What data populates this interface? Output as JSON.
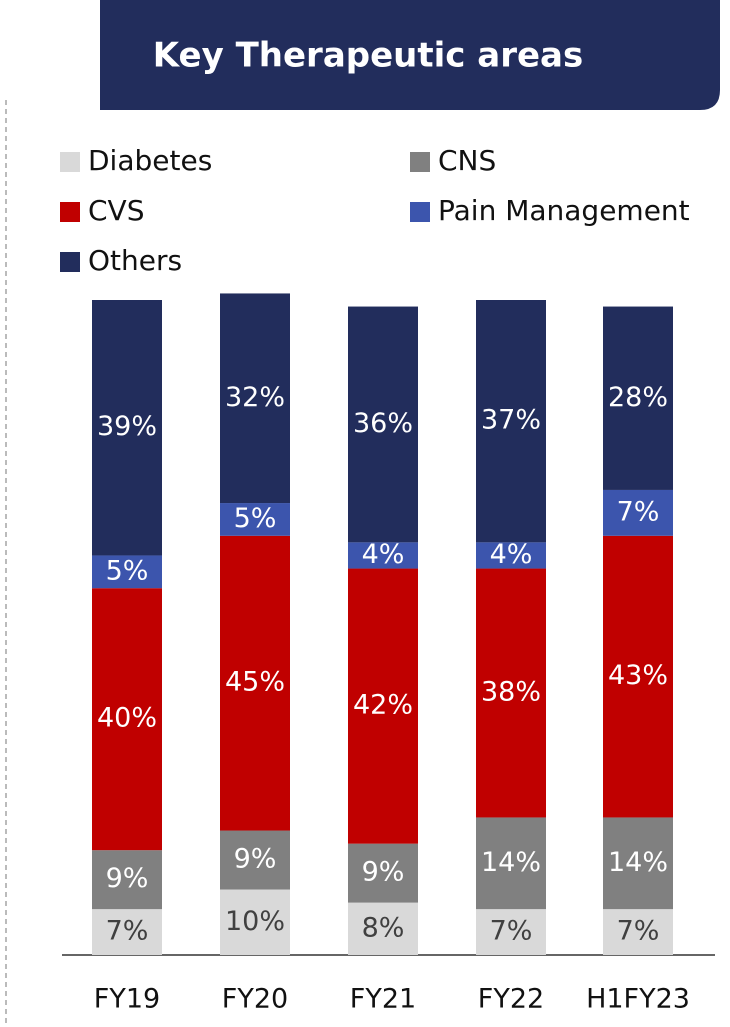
{
  "chart_data": {
    "type": "stacked_bar",
    "title": "Key Therapeutic areas",
    "categories": [
      "FY19",
      "FY20",
      "FY21",
      "FY22",
      "H1FY23"
    ],
    "ylim": [
      0,
      100
    ],
    "series": [
      {
        "name": "Diabetes",
        "color": "#d9d9d9",
        "values": [
          7,
          10,
          8,
          7,
          7
        ],
        "value_labels": [
          "7%",
          "10%",
          "8%",
          "7%",
          "7%"
        ]
      },
      {
        "name": "CNS",
        "color": "#808080",
        "values": [
          9,
          9,
          9,
          14,
          14
        ],
        "value_labels": [
          "9%",
          "9%",
          "9%",
          "14%",
          "14%"
        ]
      },
      {
        "name": "CVS",
        "color": "#c00000",
        "values": [
          40,
          45,
          42,
          38,
          43
        ],
        "value_labels": [
          "40%",
          "45%",
          "42%",
          "38%",
          "43%"
        ]
      },
      {
        "name": "Pain Management",
        "color": "#3c55ad",
        "values": [
          5,
          5,
          4,
          4,
          7
        ],
        "value_labels": [
          "5%",
          "5%",
          "4%",
          "4%",
          "7%"
        ]
      },
      {
        "name": "Others",
        "color": "#222d5c",
        "values": [
          39,
          32,
          36,
          37,
          28
        ],
        "value_labels": [
          "39%",
          "32%",
          "36%",
          "37%",
          "28%"
        ]
      }
    ]
  }
}
